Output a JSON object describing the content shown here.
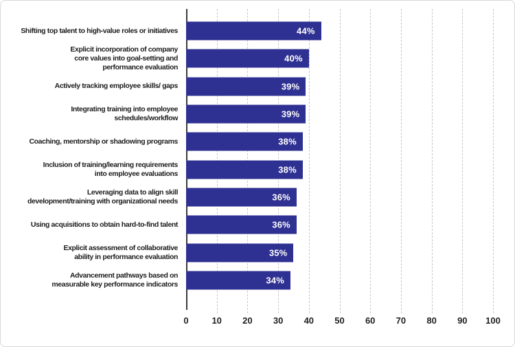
{
  "chart_data": {
    "type": "bar",
    "orientation": "horizontal",
    "title": "",
    "xlabel": "",
    "ylabel": "",
    "xlim": [
      0,
      100
    ],
    "x_ticks": [
      0,
      10,
      20,
      30,
      40,
      50,
      60,
      70,
      80,
      90,
      100
    ],
    "grid": "vertical-dashed",
    "legend": "none",
    "bar_color": "#2f3192",
    "value_label_color": "#ffffff",
    "categories": [
      "Shifting top talent to high-value roles or initiatives",
      "Explicit incorporation of company core values into goal-setting and performance evaluation",
      "Actively tracking employee skills/ gaps",
      "Integrating training into employee schedules/workflow",
      "Coaching, mentorship or shadowing programs",
      "Inclusion of training/learning requirements into employee evaluations",
      "Leveraging data to align skill development/training with organizational needs",
      "Using acquisitions to obtain hard-to-find talent",
      "Explicit assessment of collaborative ability in performance evaluation",
      "Advancement pathways based on measurable key performance indicators"
    ],
    "category_lines": [
      [
        "Shifting top talent to high-value roles or initiatives"
      ],
      [
        "Explicit incorporation of company",
        "core values into goal-setting and",
        "performance evaluation"
      ],
      [
        "Actively tracking employee skills/ gaps"
      ],
      [
        "Integrating training into employee",
        "schedules/workflow"
      ],
      [
        "Coaching, mentorship or shadowing programs"
      ],
      [
        "Inclusion of training/learning requirements",
        "into employee evaluations"
      ],
      [
        "Leveraging data to align skill",
        "development/training with organizational needs"
      ],
      [
        "Using acquisitions to obtain hard-to-find talent"
      ],
      [
        "Explicit assessment of collaborative",
        "ability in performance evaluation"
      ],
      [
        "Advancement pathways based on",
        "measurable key performance indicators"
      ]
    ],
    "values": [
      44,
      40,
      39,
      39,
      38,
      38,
      36,
      36,
      35,
      34
    ],
    "value_labels": [
      "44%",
      "40%",
      "39%",
      "39%",
      "38%",
      "38%",
      "36%",
      "36%",
      "35%",
      "34%"
    ]
  }
}
